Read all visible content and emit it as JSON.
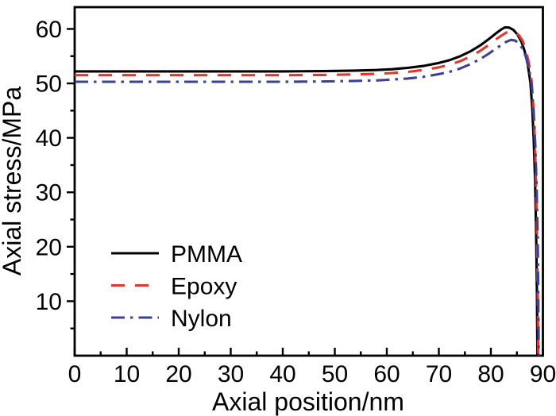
{
  "chart_data": {
    "type": "line",
    "title": "",
    "xlabel": "Axial position/nm",
    "ylabel": "Axial stress/MPa",
    "xlim": [
      0,
      90
    ],
    "ylim": [
      0,
      64
    ],
    "x_ticks": [
      0,
      10,
      20,
      30,
      40,
      50,
      60,
      70,
      80,
      90
    ],
    "x_minor_step": 5,
    "y_ticks": [
      10,
      20,
      30,
      40,
      50,
      60
    ],
    "y_minor_step": 5,
    "grid": false,
    "legend_position": "inside-lower-left",
    "frame_color": "#000000",
    "series": [
      {
        "name": "PMMA",
        "color": "#000000",
        "style": "solid",
        "flat_level": 52.2,
        "peak": [
          82.7,
          60.3
        ],
        "points": [
          [
            0,
            52.2
          ],
          [
            10,
            52.2
          ],
          [
            20,
            52.2
          ],
          [
            30,
            52.2
          ],
          [
            40,
            52.2
          ],
          [
            48,
            52.25
          ],
          [
            54,
            52.35
          ],
          [
            58,
            52.45
          ],
          [
            61,
            52.6
          ],
          [
            64,
            52.85
          ],
          [
            67,
            53.2
          ],
          [
            70,
            53.75
          ],
          [
            72,
            54.25
          ],
          [
            74,
            54.95
          ],
          [
            76,
            55.85
          ],
          [
            78,
            57.0
          ],
          [
            79.5,
            58.05
          ],
          [
            81,
            59.2
          ],
          [
            82,
            59.9
          ],
          [
            82.7,
            60.3
          ],
          [
            83.5,
            60.25
          ],
          [
            84.3,
            59.85
          ],
          [
            85.1,
            59.0
          ],
          [
            85.9,
            57.6
          ],
          [
            86.5,
            55.9
          ],
          [
            87.1,
            53.4
          ],
          [
            87.6,
            50.1
          ],
          [
            87.95,
            45.5
          ],
          [
            88.25,
            39.5
          ],
          [
            88.5,
            32.0
          ],
          [
            88.7,
            22.5
          ],
          [
            88.85,
            11.5
          ],
          [
            88.95,
            0
          ]
        ]
      },
      {
        "name": "Epoxy",
        "color": "#e1372d",
        "style": "dashed",
        "flat_level": 51.5,
        "peak": [
          83.8,
          59.6
        ],
        "points": [
          [
            0,
            51.5
          ],
          [
            10,
            51.5
          ],
          [
            20,
            51.5
          ],
          [
            30,
            51.5
          ],
          [
            40,
            51.5
          ],
          [
            48,
            51.55
          ],
          [
            54,
            51.65
          ],
          [
            58,
            51.75
          ],
          [
            61,
            51.9
          ],
          [
            64,
            52.1
          ],
          [
            67,
            52.45
          ],
          [
            70,
            52.95
          ],
          [
            72,
            53.4
          ],
          [
            74,
            54.05
          ],
          [
            76,
            54.9
          ],
          [
            78,
            56.0
          ],
          [
            79.5,
            57.0
          ],
          [
            81,
            58.1
          ],
          [
            82,
            58.75
          ],
          [
            83,
            59.35
          ],
          [
            83.8,
            59.6
          ],
          [
            84.6,
            59.45
          ],
          [
            85.4,
            58.85
          ],
          [
            86.1,
            57.8
          ],
          [
            86.7,
            56.2
          ],
          [
            87.3,
            53.8
          ],
          [
            87.8,
            50.6
          ],
          [
            88.15,
            46.0
          ],
          [
            88.45,
            40.0
          ],
          [
            88.65,
            32.5
          ],
          [
            88.85,
            23.0
          ],
          [
            89.0,
            12.0
          ],
          [
            89.1,
            0
          ]
        ]
      },
      {
        "name": "Nylon",
        "color": "#3c4096",
        "style": "dash-dot",
        "flat_level": 50.3,
        "peak": [
          83.9,
          58.0
        ],
        "points": [
          [
            0,
            50.3
          ],
          [
            10,
            50.3
          ],
          [
            20,
            50.3
          ],
          [
            30,
            50.3
          ],
          [
            40,
            50.3
          ],
          [
            48,
            50.35
          ],
          [
            54,
            50.45
          ],
          [
            58,
            50.55
          ],
          [
            61,
            50.7
          ],
          [
            64,
            50.9
          ],
          [
            67,
            51.2
          ],
          [
            70,
            51.7
          ],
          [
            72,
            52.1
          ],
          [
            74,
            52.7
          ],
          [
            76,
            53.5
          ],
          [
            78,
            54.5
          ],
          [
            79.5,
            55.4
          ],
          [
            81,
            56.4
          ],
          [
            82,
            57.05
          ],
          [
            83,
            57.65
          ],
          [
            83.9,
            58.0
          ],
          [
            84.7,
            57.85
          ],
          [
            85.5,
            57.25
          ],
          [
            86.2,
            56.2
          ],
          [
            86.8,
            54.7
          ],
          [
            87.4,
            52.4
          ],
          [
            87.9,
            49.3
          ],
          [
            88.25,
            44.5
          ],
          [
            88.55,
            38.5
          ],
          [
            88.8,
            31.0
          ],
          [
            89.0,
            21.5
          ],
          [
            89.1,
            12.0
          ],
          [
            89.2,
            0
          ]
        ]
      }
    ]
  }
}
